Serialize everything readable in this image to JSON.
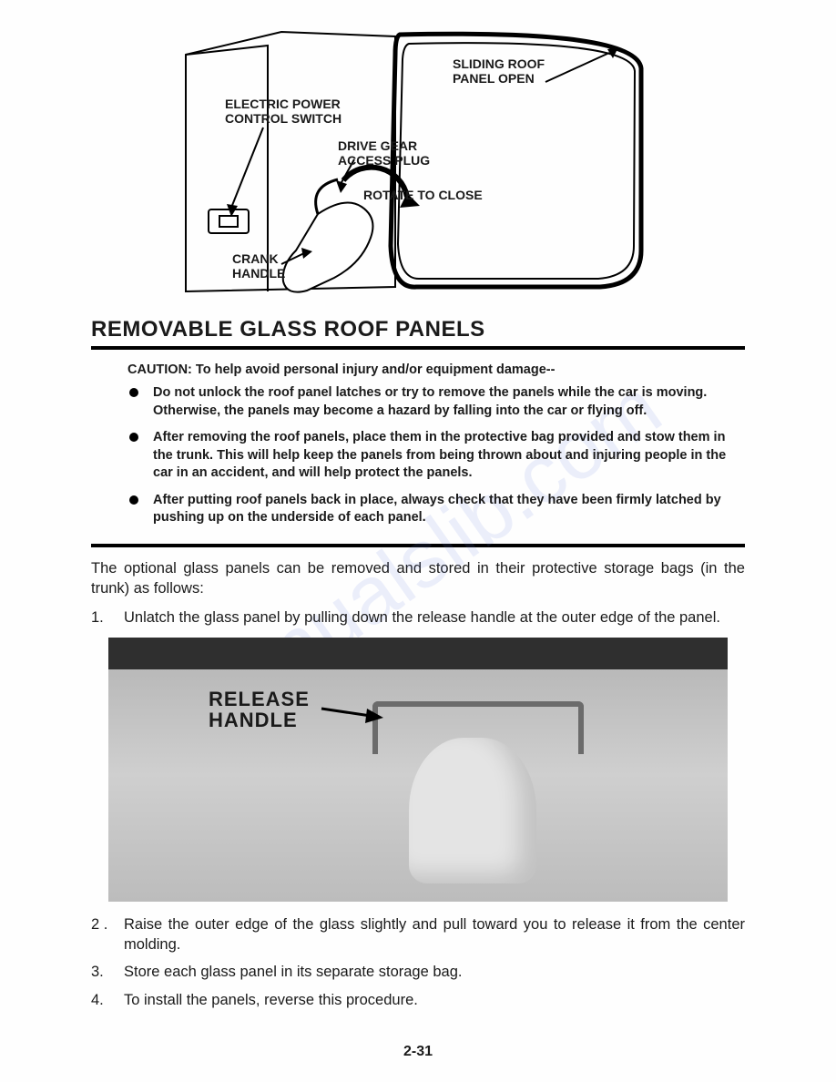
{
  "diagram": {
    "labels": {
      "sliding_roof": "SLIDING ROOF\nPANEL OPEN",
      "electric_switch": "ELECTRIC POWER\nCONTROL SWITCH",
      "drive_gear": "DRIVE GEAR\nACCESS PLUG",
      "rotate": "ROTATE TO CLOSE",
      "crank": "CRANK\nHANDLE"
    },
    "style": {
      "line_color": "#000000",
      "line_width": 2,
      "roof_line_width": 4,
      "label_fontsize": 14,
      "label_fontweight": "bold"
    }
  },
  "section_title": "REMOVABLE GLASS ROOF PANELS",
  "caution": {
    "lead_label": "CAUTION:",
    "lead_text": "To help avoid personal injury and/or equipment damage--",
    "bullets": [
      "Do not unlock the roof panel latches or try to remove the panels while the car is moving. Otherwise, the panels may become a hazard by falling into the car or flying off.",
      "After removing the roof panels, place them in the protective bag provided and stow them in the trunk. This will help keep the panels from being thrown about and injuring people in the car in an accident, and will help protect the panels.",
      "After putting roof panels back in place, always check that they have been firmly latched by pushing up on the underside of each panel."
    ]
  },
  "intro_para": "The optional glass panels can be removed and stored in their protective storage bags (in the trunk) as follows:",
  "steps": [
    "Unlatch the glass panel by pulling down the release handle at the outer edge of the panel.",
    "Raise the outer edge of the glass slightly and pull toward you to release it from the center molding.",
    "Store each glass panel in its separate storage bag.",
    "To install the panels, reverse this procedure."
  ],
  "photo": {
    "label": "RELEASE\nHANDLE",
    "label_fontsize": 22,
    "background_dark": "#2f2f2f",
    "background_light": "#cfcfcf",
    "handle_color": "#6b6b6b"
  },
  "page_number": "2-31",
  "watermark_text": "manualslib.com",
  "colors": {
    "text": "#1a1a1a",
    "rule": "#000000",
    "watermark": "rgba(100,120,220,0.12)",
    "page_bg": "#fefefe"
  },
  "typography": {
    "title_fontsize": 24,
    "body_fontsize": 16.5,
    "caution_fontsize": 14.5,
    "font_family": "Arial, Helvetica, sans-serif"
  }
}
